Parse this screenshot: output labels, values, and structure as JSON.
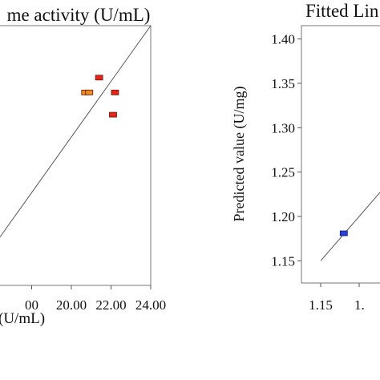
{
  "chart_data": [
    {
      "type": "scatter",
      "title": "me activity (U/mL)",
      "xlabel": "(U/mL)",
      "ylabel": "",
      "xlim": [
        16.0,
        24.0
      ],
      "ylim": [
        17.5,
        21.0
      ],
      "x_ticks": [
        "00",
        "20.00",
        "22.00",
        "24.00"
      ],
      "x_tick_values": [
        18.0,
        20.0,
        22.0,
        24.0
      ],
      "fit_line": {
        "x": [
          16.0,
          24.0
        ],
        "y": [
          18.0,
          21.0
        ]
      },
      "series": [
        {
          "points": [
            {
              "x": 20.7,
              "y": 20.1,
              "color": "#f08a24"
            },
            {
              "x": 20.9,
              "y": 20.1,
              "color": "#f08a24"
            },
            {
              "x": 21.4,
              "y": 20.3,
              "color": "#e8241a"
            },
            {
              "x": 22.2,
              "y": 20.1,
              "color": "#e8241a"
            },
            {
              "x": 22.1,
              "y": 19.8,
              "color": "#e8241a"
            }
          ]
        }
      ],
      "grid": false
    },
    {
      "type": "scatter",
      "title": "Fitted Lin",
      "xlabel": "",
      "ylabel": "Predicted value (U/mg)",
      "xlim": [
        1.125,
        1.25
      ],
      "ylim": [
        1.125,
        1.415
      ],
      "x_ticks": [
        "1.15",
        "1."
      ],
      "x_tick_values": [
        1.15,
        1.2
      ],
      "y_ticks": [
        "1.15",
        "1.20",
        "1.25",
        "1.30",
        "1.35",
        "1.40"
      ],
      "y_tick_values": [
        1.15,
        1.2,
        1.25,
        1.3,
        1.35,
        1.4
      ],
      "fit_line": {
        "x": [
          1.15,
          1.25
        ],
        "y": [
          1.15,
          1.25
        ]
      },
      "series": [
        {
          "points": [
            {
              "x": 1.18,
              "y": 1.181,
              "color": "#2a3fd6"
            }
          ]
        }
      ],
      "grid": false
    }
  ]
}
